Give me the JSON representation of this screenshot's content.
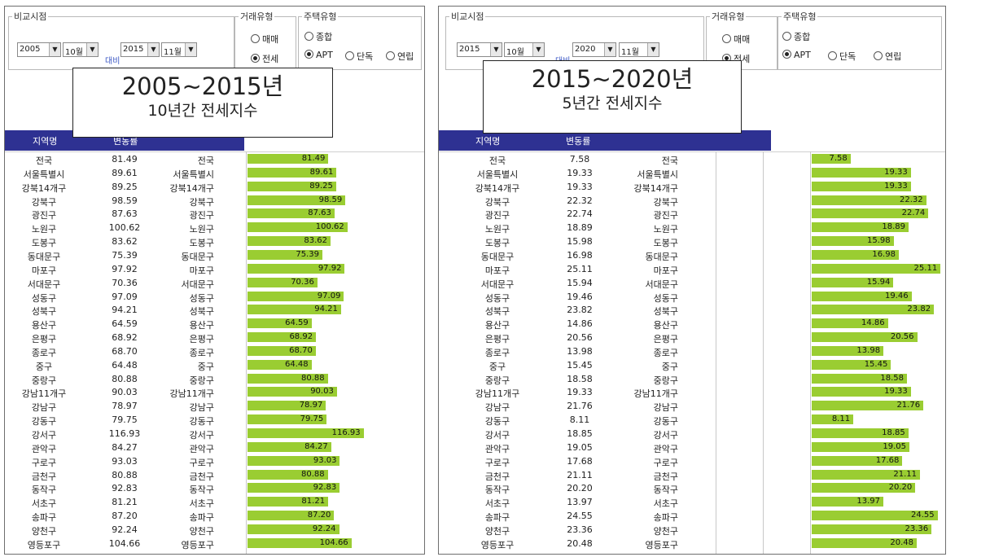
{
  "left": {
    "compare_label": "비교시점",
    "start_year": "2005",
    "start_month": "10월",
    "vs_label": "대비",
    "end_year": "2015",
    "end_month": "11월",
    "trade_label": "거래유형",
    "trade_sale": "매매",
    "trade_jeonse": "전세",
    "house_label": "주택유형",
    "house_all": "종합",
    "house_apt": "APT",
    "house_single": "단독",
    "house_row": "연립",
    "col_region": "지역명",
    "col_change": "변동률",
    "overlay_title": "2005~2015년",
    "overlay_sub": "10년간 전세지수",
    "rows": [
      {
        "name": "전국",
        "value": "81.49"
      },
      {
        "name": "서울특별시",
        "value": "89.61"
      },
      {
        "name": "강북14개구",
        "value": "89.25"
      },
      {
        "name": "강북구",
        "value": "98.59"
      },
      {
        "name": "광진구",
        "value": "87.63"
      },
      {
        "name": "노원구",
        "value": "100.62"
      },
      {
        "name": "도봉구",
        "value": "83.62"
      },
      {
        "name": "동대문구",
        "value": "75.39"
      },
      {
        "name": "마포구",
        "value": "97.92"
      },
      {
        "name": "서대문구",
        "value": "70.36"
      },
      {
        "name": "성동구",
        "value": "97.09"
      },
      {
        "name": "성북구",
        "value": "94.21"
      },
      {
        "name": "용산구",
        "value": "64.59"
      },
      {
        "name": "은평구",
        "value": "68.92"
      },
      {
        "name": "종로구",
        "value": "68.70"
      },
      {
        "name": "중구",
        "value": "64.48"
      },
      {
        "name": "중랑구",
        "value": "80.88"
      },
      {
        "name": "강남11개구",
        "value": "90.03"
      },
      {
        "name": "강남구",
        "value": "78.97"
      },
      {
        "name": "강동구",
        "value": "79.75"
      },
      {
        "name": "강서구",
        "value": "116.93"
      },
      {
        "name": "관악구",
        "value": "84.27"
      },
      {
        "name": "구로구",
        "value": "93.03"
      },
      {
        "name": "금천구",
        "value": "80.88"
      },
      {
        "name": "동작구",
        "value": "92.83"
      },
      {
        "name": "서초구",
        "value": "81.21"
      },
      {
        "name": "송파구",
        "value": "87.20"
      },
      {
        "name": "양천구",
        "value": "92.24"
      },
      {
        "name": "영등포구",
        "value": "104.66"
      }
    ]
  },
  "right": {
    "compare_label": "비교시점",
    "start_year": "2015",
    "start_month": "10월",
    "vs_label": "대비",
    "end_year": "2020",
    "end_month": "11월",
    "trade_label": "거래유형",
    "trade_sale": "매매",
    "trade_jeonse": "전세",
    "house_label": "주택유형",
    "house_all": "종합",
    "house_apt": "APT",
    "house_single": "단독",
    "house_row": "연립",
    "col_region": "지역명",
    "col_change": "변동률",
    "overlay_title": "2015~2020년",
    "overlay_sub": "5년간 전세지수",
    "rows": [
      {
        "name": "전국",
        "value": "7.58"
      },
      {
        "name": "서울특별시",
        "value": "19.33"
      },
      {
        "name": "강북14개구",
        "value": "19.33"
      },
      {
        "name": "강북구",
        "value": "22.32"
      },
      {
        "name": "광진구",
        "value": "22.74"
      },
      {
        "name": "노원구",
        "value": "18.89"
      },
      {
        "name": "도봉구",
        "value": "15.98"
      },
      {
        "name": "동대문구",
        "value": "16.98"
      },
      {
        "name": "마포구",
        "value": "25.11"
      },
      {
        "name": "서대문구",
        "value": "15.94"
      },
      {
        "name": "성동구",
        "value": "19.46"
      },
      {
        "name": "성북구",
        "value": "23.82"
      },
      {
        "name": "용산구",
        "value": "14.86"
      },
      {
        "name": "은평구",
        "value": "20.56"
      },
      {
        "name": "종로구",
        "value": "13.98"
      },
      {
        "name": "중구",
        "value": "15.45"
      },
      {
        "name": "중랑구",
        "value": "18.58"
      },
      {
        "name": "강남11개구",
        "value": "19.33"
      },
      {
        "name": "강남구",
        "value": "21.76"
      },
      {
        "name": "강동구",
        "value": "8.11"
      },
      {
        "name": "강서구",
        "value": "18.85"
      },
      {
        "name": "관악구",
        "value": "19.05"
      },
      {
        "name": "구로구",
        "value": "17.68"
      },
      {
        "name": "금천구",
        "value": "21.11"
      },
      {
        "name": "동작구",
        "value": "20.20"
      },
      {
        "name": "서초구",
        "value": "13.97"
      },
      {
        "name": "송파구",
        "value": "24.55"
      },
      {
        "name": "양천구",
        "value": "23.36"
      },
      {
        "name": "영등포구",
        "value": "20.48"
      }
    ]
  },
  "colors": {
    "header": "#2e3192",
    "bar": "#9acd32"
  }
}
